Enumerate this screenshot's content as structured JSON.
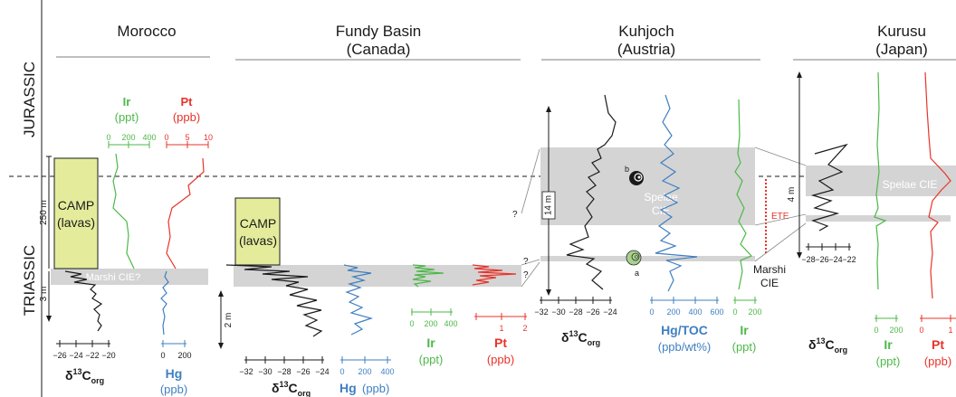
{
  "periods": {
    "jurassic": "JURASSIC",
    "triassic": "TRIASSIC"
  },
  "colors": {
    "black": "#1a1a1a",
    "green": "#4db848",
    "red": "#e8332a",
    "blue": "#3f7fc1",
    "band": "#d4d4d4",
    "camp": "#e4ec9b",
    "ammonite_a": "#a9d18e"
  },
  "sections": {
    "morocco": {
      "title": "Morocco",
      "camp_label": "CAMP\n(lavas)",
      "band_label": "Marshi CIE?",
      "scale_250": "250 m",
      "scale_3": "3 m",
      "ir": {
        "label": "Ir",
        "unit": "(ppt)",
        "ticks": [
          "0",
          "200",
          "400"
        ]
      },
      "pt": {
        "label": "Pt",
        "unit": "(ppb)",
        "ticks": [
          "0",
          "5",
          "10"
        ]
      },
      "c13": {
        "ticks": [
          "−26",
          "−24",
          "−22",
          "−20"
        ],
        "label_main": "δ",
        "label_sup": "13",
        "label_c": "C",
        "label_sub": "org"
      },
      "hg": {
        "label": "Hg",
        "unit": "(ppb)",
        "ticks": [
          "0",
          "200"
        ]
      }
    },
    "fundy": {
      "title_1": "Fundy Basin",
      "title_2": "(Canada)",
      "camp_label": "CAMP\n(lavas)",
      "scale_2": "2 m",
      "c13": {
        "ticks": [
          "−32",
          "−30",
          "−28",
          "−26",
          "−24"
        ],
        "label_main": "δ",
        "label_sup": "13",
        "label_c": "C",
        "label_sub": "org"
      },
      "hg": {
        "label": "Hg",
        "unit": "(ppb)",
        "ticks": [
          "0",
          "200",
          "400"
        ]
      },
      "ir": {
        "label": "Ir",
        "unit": "(ppt)",
        "ticks": [
          "0",
          "200",
          "400"
        ]
      },
      "pt": {
        "label": "Pt",
        "unit": "(ppb)",
        "ticks": [
          "1",
          "2"
        ]
      }
    },
    "kuhjoch": {
      "title_1": "Kuhjoch",
      "title_2": "(Austria)",
      "scale_14": "14 m",
      "spelae_1": "Spelae",
      "spelae_2": "CIE",
      "marshi_1": "Marshi",
      "marshi_2": "CIE",
      "ete": "ETE",
      "amm_a": "a",
      "amm_b": "b",
      "q": "?",
      "c13": {
        "ticks": [
          "−32",
          "−30",
          "−28",
          "−26",
          "−24"
        ],
        "label_main": "δ",
        "label_sup": "13",
        "label_c": "C",
        "label_sub": "org"
      },
      "hgtoc": {
        "label": "Hg/TOC",
        "unit": "(ppb/wt%)",
        "ticks": [
          "0",
          "200",
          "400",
          "600"
        ]
      },
      "ir": {
        "label": "Ir",
        "unit": "(ppt)",
        "ticks": [
          "0",
          "200"
        ]
      }
    },
    "kurusu": {
      "title_1": "Kurusu",
      "title_2": "(Japan)",
      "scale_4": "4 m",
      "spelae": "Spelae CIE",
      "c13": {
        "ticks": [
          "−28",
          "−26",
          "−24",
          "−22"
        ],
        "label_main": "δ",
        "label_sup": "13",
        "label_c": "C",
        "label_sub": "org"
      },
      "ir": {
        "label": "Ir",
        "unit": "(ppt)",
        "ticks": [
          "0",
          "200"
        ]
      },
      "pt": {
        "label": "Pt",
        "unit": "(ppb)",
        "ticks": [
          "0",
          "1"
        ]
      }
    }
  }
}
